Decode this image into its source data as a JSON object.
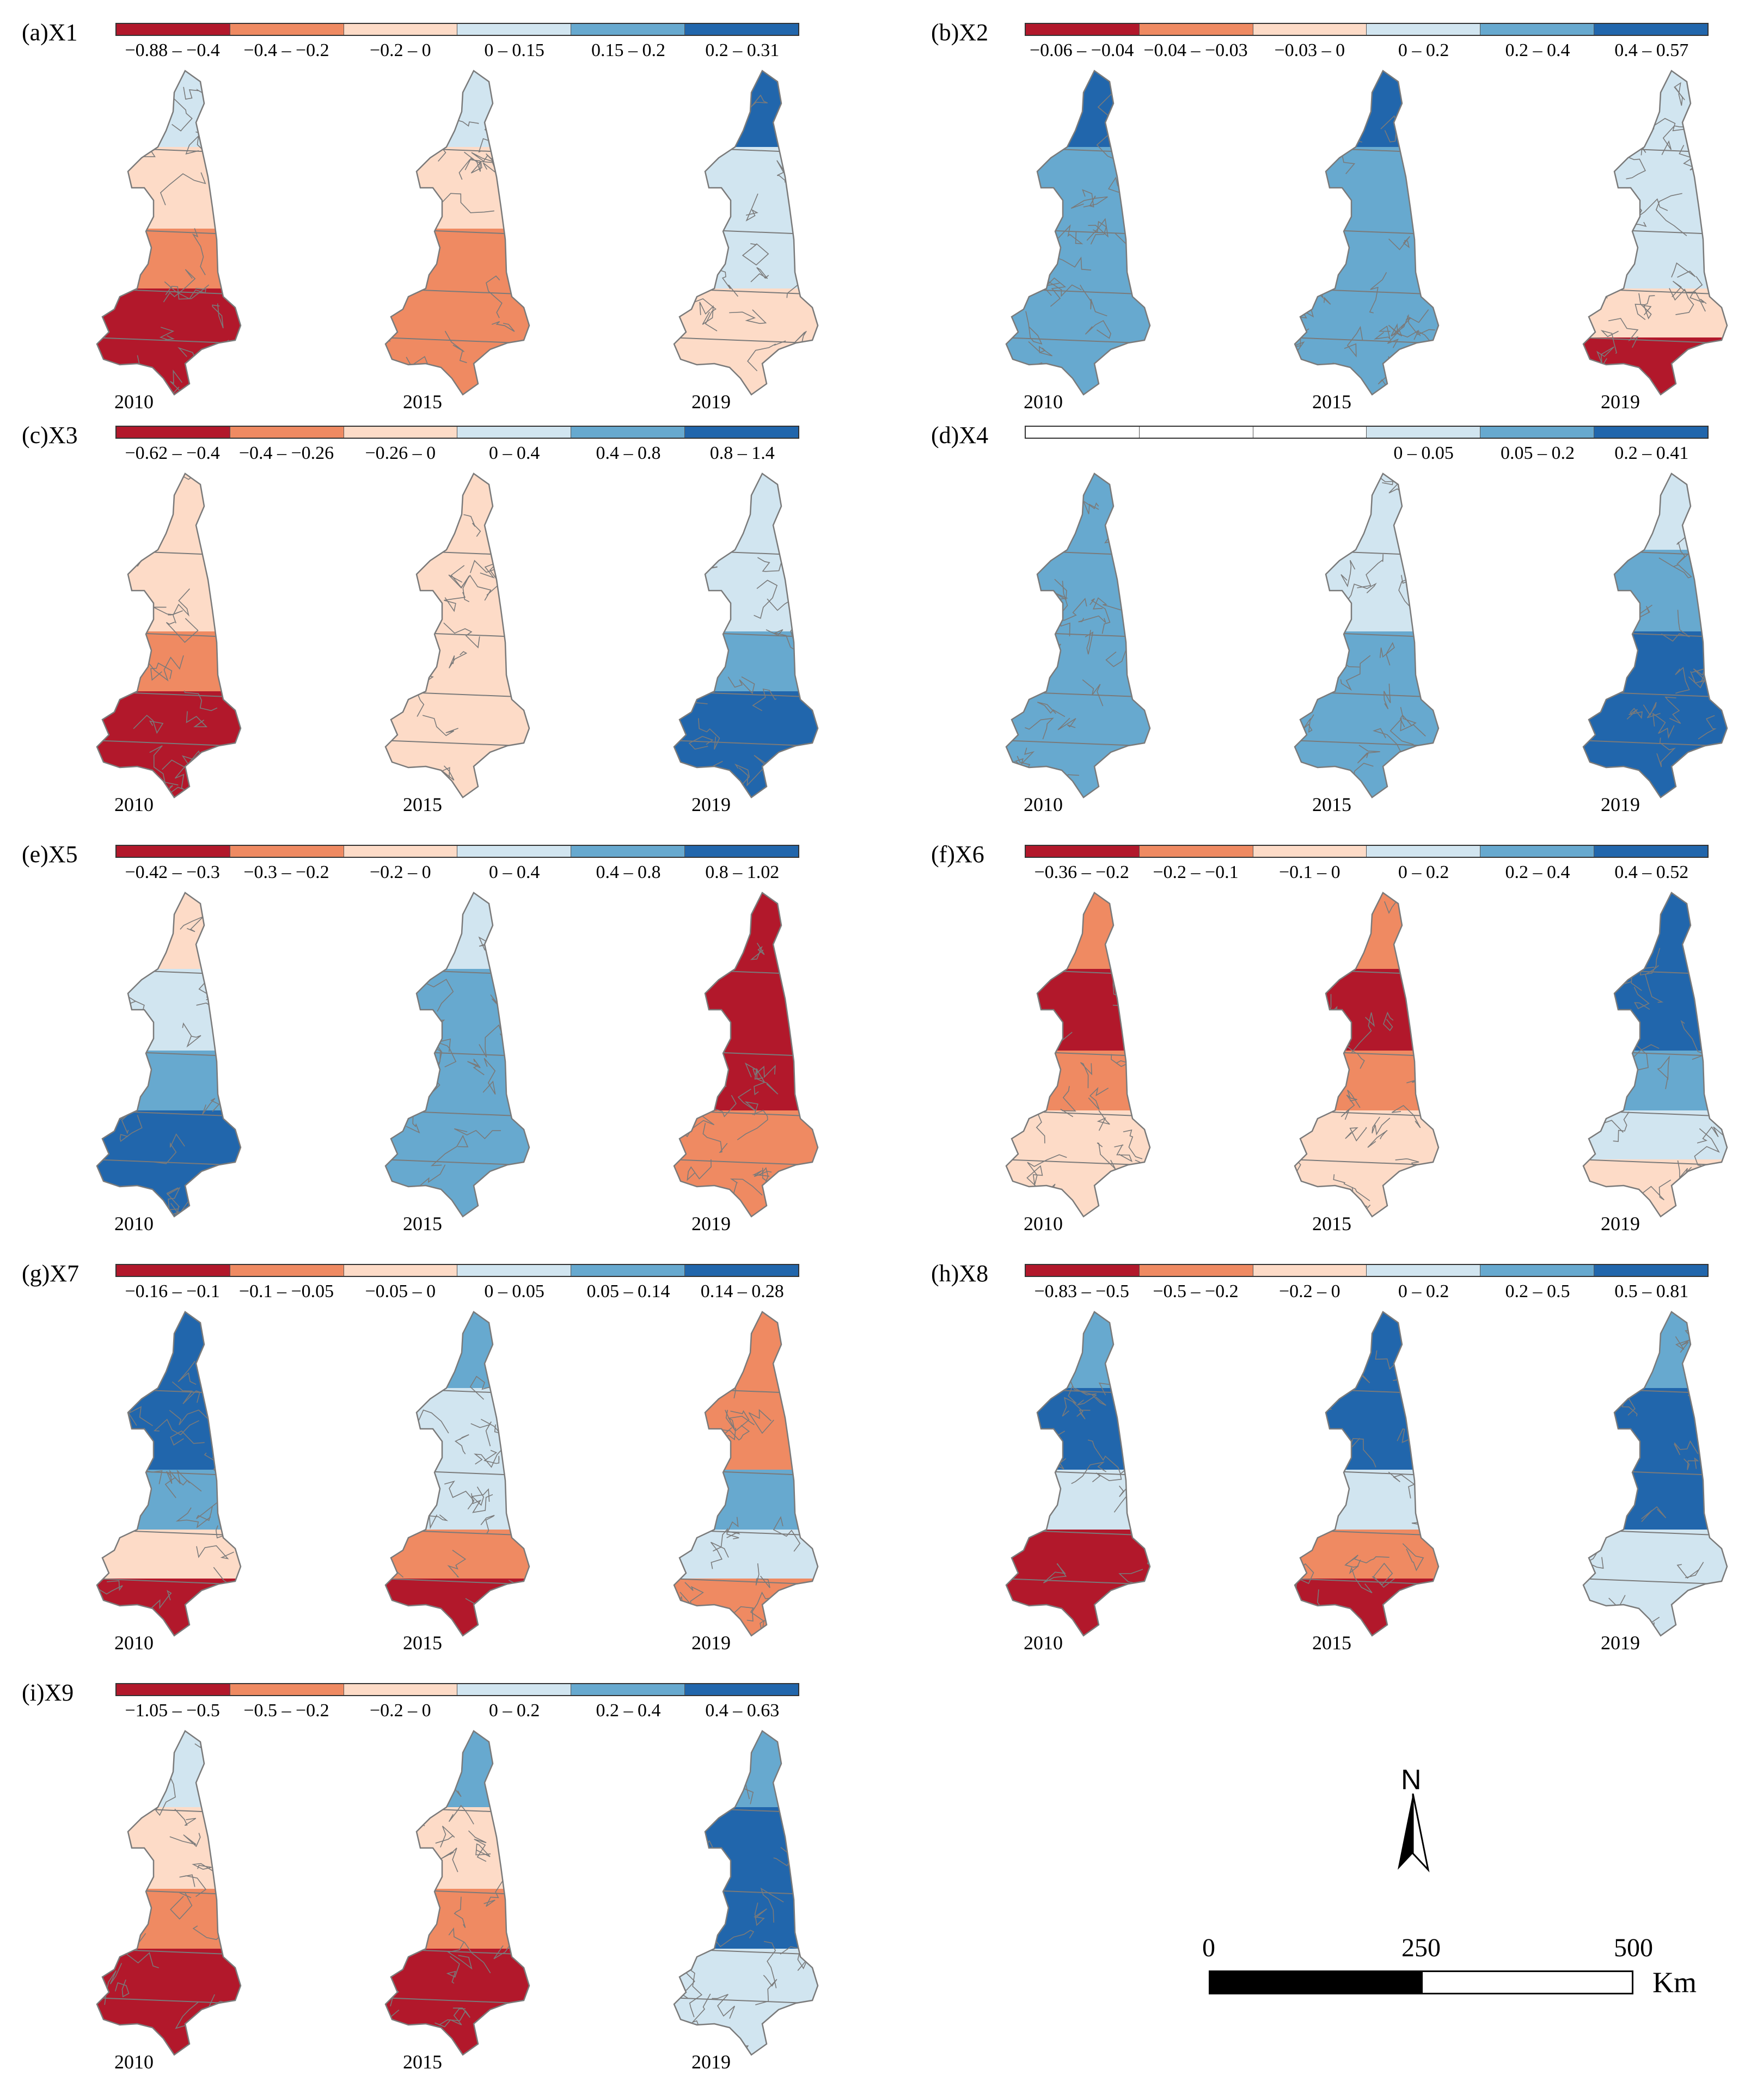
{
  "palette": {
    "dark_red": "#b2182b",
    "orange": "#ef8a62",
    "peach": "#fddbc7",
    "light_blue": "#d1e5f0",
    "mid_blue": "#67a9cf",
    "dark_blue": "#2166ac",
    "white": "#ffffff",
    "boundary": "#7a7a7a"
  },
  "panels": [
    {
      "id": "a",
      "title": "(a)X1",
      "legend": [
        {
          "label": "−0.88 – −0.4",
          "color": "dark_red"
        },
        {
          "label": "−0.4 – −0.2",
          "color": "orange"
        },
        {
          "label": "−0.2 – 0",
          "color": "peach"
        },
        {
          "label": "0 – 0.15",
          "color": "light_blue"
        },
        {
          "label": "0.15 – 0.2",
          "color": "mid_blue"
        },
        {
          "label": "0.2 – 0.31",
          "color": "dark_blue"
        }
      ],
      "years": [
        "2010",
        "2015",
        "2019"
      ],
      "maps": [
        [
          "light_blue",
          "peach",
          "orange",
          "dark_red",
          "dark_red"
        ],
        [
          "light_blue",
          "peach",
          "orange",
          "orange",
          "orange"
        ],
        [
          "dark_blue",
          "light_blue",
          "light_blue",
          "peach",
          "peach"
        ]
      ]
    },
    {
      "id": "b",
      "title": "(b)X2",
      "legend": [
        {
          "label": "−0.06 – −0.04",
          "color": "dark_red"
        },
        {
          "label": "−0.04 – −0.03",
          "color": "orange"
        },
        {
          "label": "−0.03 – 0",
          "color": "peach"
        },
        {
          "label": "0 – 0.2",
          "color": "light_blue"
        },
        {
          "label": "0.2 – 0.4",
          "color": "mid_blue"
        },
        {
          "label": "0.4 – 0.57",
          "color": "dark_blue"
        }
      ],
      "years": [
        "2010",
        "2015",
        "2019"
      ],
      "maps": [
        [
          "dark_blue",
          "mid_blue",
          "mid_blue",
          "mid_blue",
          "mid_blue"
        ],
        [
          "dark_blue",
          "mid_blue",
          "mid_blue",
          "mid_blue",
          "mid_blue"
        ],
        [
          "light_blue",
          "light_blue",
          "light_blue",
          "peach",
          "dark_red"
        ]
      ]
    },
    {
      "id": "c",
      "title": "(c)X3",
      "legend": [
        {
          "label": "−0.62 – −0.4",
          "color": "dark_red"
        },
        {
          "label": "−0.4 – −0.26",
          "color": "orange"
        },
        {
          "label": "−0.26 – 0",
          "color": "peach"
        },
        {
          "label": "0 – 0.4",
          "color": "light_blue"
        },
        {
          "label": "0.4 – 0.8",
          "color": "mid_blue"
        },
        {
          "label": "0.8 – 1.4",
          "color": "dark_blue"
        }
      ],
      "years": [
        "2010",
        "2015",
        "2019"
      ],
      "maps": [
        [
          "peach",
          "peach",
          "orange",
          "dark_red",
          "dark_red"
        ],
        [
          "peach",
          "peach",
          "peach",
          "peach",
          "peach"
        ],
        [
          "light_blue",
          "light_blue",
          "mid_blue",
          "dark_blue",
          "dark_blue"
        ]
      ]
    },
    {
      "id": "d",
      "title": "(d)X4",
      "legend": [
        {
          "label": "",
          "color": "white"
        },
        {
          "label": "",
          "color": "white"
        },
        {
          "label": "",
          "color": "white"
        },
        {
          "label": "0 – 0.05",
          "color": "light_blue"
        },
        {
          "label": "0.05 – 0.2",
          "color": "mid_blue"
        },
        {
          "label": "0.2 – 0.41",
          "color": "dark_blue"
        }
      ],
      "years": [
        "2010",
        "2015",
        "2019"
      ],
      "maps": [
        [
          "mid_blue",
          "mid_blue",
          "mid_blue",
          "mid_blue",
          "mid_blue"
        ],
        [
          "light_blue",
          "light_blue",
          "mid_blue",
          "mid_blue",
          "mid_blue"
        ],
        [
          "light_blue",
          "mid_blue",
          "dark_blue",
          "dark_blue",
          "dark_blue"
        ]
      ]
    },
    {
      "id": "e",
      "title": "(e)X5",
      "legend": [
        {
          "label": "−0.42 – −0.3",
          "color": "dark_red"
        },
        {
          "label": "−0.3 – −0.2",
          "color": "orange"
        },
        {
          "label": "−0.2 – 0",
          "color": "peach"
        },
        {
          "label": "0 – 0.4",
          "color": "light_blue"
        },
        {
          "label": "0.4 – 0.8",
          "color": "mid_blue"
        },
        {
          "label": "0.8 – 1.02",
          "color": "dark_blue"
        }
      ],
      "years": [
        "2010",
        "2015",
        "2019"
      ],
      "maps": [
        [
          "peach",
          "light_blue",
          "mid_blue",
          "dark_blue",
          "dark_blue"
        ],
        [
          "light_blue",
          "mid_blue",
          "mid_blue",
          "mid_blue",
          "mid_blue"
        ],
        [
          "dark_red",
          "dark_red",
          "dark_red",
          "orange",
          "orange"
        ]
      ]
    },
    {
      "id": "f",
      "title": "(f)X6",
      "legend": [
        {
          "label": "−0.36 – −0.2",
          "color": "dark_red"
        },
        {
          "label": "−0.2 – −0.1",
          "color": "orange"
        },
        {
          "label": "−0.1 – 0",
          "color": "peach"
        },
        {
          "label": "0 – 0.2",
          "color": "light_blue"
        },
        {
          "label": "0.2 – 0.4",
          "color": "mid_blue"
        },
        {
          "label": "0.4 – 0.52",
          "color": "dark_blue"
        }
      ],
      "years": [
        "2010",
        "2015",
        "2019"
      ],
      "maps": [
        [
          "orange",
          "dark_red",
          "orange",
          "peach",
          "peach"
        ],
        [
          "orange",
          "dark_red",
          "orange",
          "peach",
          "peach"
        ],
        [
          "dark_blue",
          "dark_blue",
          "mid_blue",
          "light_blue",
          "peach"
        ]
      ]
    },
    {
      "id": "g",
      "title": "(g)X7",
      "legend": [
        {
          "label": "−0.16 – −0.1",
          "color": "dark_red"
        },
        {
          "label": "−0.1 – −0.05",
          "color": "orange"
        },
        {
          "label": "−0.05 – 0",
          "color": "peach"
        },
        {
          "label": "0 – 0.05",
          "color": "light_blue"
        },
        {
          "label": "0.05 – 0.14",
          "color": "mid_blue"
        },
        {
          "label": "0.14 – 0.28",
          "color": "dark_blue"
        }
      ],
      "years": [
        "2010",
        "2015",
        "2019"
      ],
      "maps": [
        [
          "dark_blue",
          "dark_blue",
          "mid_blue",
          "peach",
          "dark_red"
        ],
        [
          "mid_blue",
          "light_blue",
          "light_blue",
          "orange",
          "dark_red"
        ],
        [
          "orange",
          "orange",
          "mid_blue",
          "light_blue",
          "orange"
        ]
      ]
    },
    {
      "id": "h",
      "title": "(h)X8",
      "legend": [
        {
          "label": "−0.83 – −0.5",
          "color": "dark_red"
        },
        {
          "label": "−0.5 – −0.2",
          "color": "orange"
        },
        {
          "label": "−0.2 – 0",
          "color": "peach"
        },
        {
          "label": "0 – 0.2",
          "color": "light_blue"
        },
        {
          "label": "0.2 – 0.5",
          "color": "mid_blue"
        },
        {
          "label": "0.5 – 0.81",
          "color": "dark_blue"
        }
      ],
      "years": [
        "2010",
        "2015",
        "2019"
      ],
      "maps": [
        [
          "mid_blue",
          "dark_blue",
          "light_blue",
          "dark_red",
          "dark_red"
        ],
        [
          "dark_blue",
          "dark_blue",
          "light_blue",
          "orange",
          "dark_red"
        ],
        [
          "mid_blue",
          "dark_blue",
          "dark_blue",
          "light_blue",
          "light_blue"
        ]
      ]
    },
    {
      "id": "i",
      "title": "(i)X9",
      "legend": [
        {
          "label": "−1.05 – −0.5",
          "color": "dark_red"
        },
        {
          "label": "−0.5 – −0.2",
          "color": "orange"
        },
        {
          "label": "−0.2 – 0",
          "color": "peach"
        },
        {
          "label": "0 – 0.2",
          "color": "light_blue"
        },
        {
          "label": "0.2 – 0.4",
          "color": "mid_blue"
        },
        {
          "label": "0.4 – 0.63",
          "color": "dark_blue"
        }
      ],
      "years": [
        "2010",
        "2015",
        "2019"
      ],
      "maps": [
        [
          "light_blue",
          "peach",
          "orange",
          "dark_red",
          "dark_red"
        ],
        [
          "mid_blue",
          "peach",
          "orange",
          "dark_red",
          "dark_red"
        ],
        [
          "mid_blue",
          "dark_blue",
          "dark_blue",
          "light_blue",
          "light_blue"
        ]
      ]
    }
  ],
  "north_arrow": {
    "label": "N"
  },
  "scale_bar": {
    "ticks": [
      "0",
      "250",
      "500"
    ],
    "unit": "Km"
  }
}
